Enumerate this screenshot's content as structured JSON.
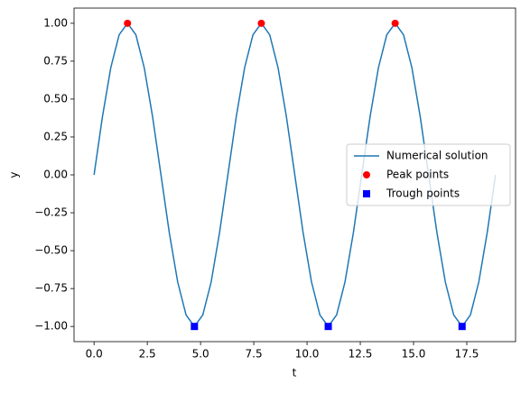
{
  "chart_data": {
    "type": "line",
    "xlabel": "t",
    "ylabel": "y",
    "xlim": [
      -0.94,
      19.79
    ],
    "ylim": [
      -1.1,
      1.1
    ],
    "xticks": [
      {
        "value": 0,
        "label": "0.0"
      },
      {
        "value": 2.5,
        "label": "2.5"
      },
      {
        "value": 5,
        "label": "5.0"
      },
      {
        "value": 7.5,
        "label": "7.5"
      },
      {
        "value": 10,
        "label": "10.0"
      },
      {
        "value": 12.5,
        "label": "12.5"
      },
      {
        "value": 15,
        "label": "15.0"
      },
      {
        "value": 17.5,
        "label": "17.5"
      }
    ],
    "yticks": [
      {
        "value": -1,
        "label": "−1.00"
      },
      {
        "value": -0.75,
        "label": "−0.75"
      },
      {
        "value": -0.5,
        "label": "−0.50"
      },
      {
        "value": -0.25,
        "label": "−0.25"
      },
      {
        "value": 0,
        "label": "0.00"
      },
      {
        "value": 0.25,
        "label": "0.25"
      },
      {
        "value": 0.5,
        "label": "0.50"
      },
      {
        "value": 0.75,
        "label": "0.75"
      },
      {
        "value": 1,
        "label": "1.00"
      }
    ],
    "grid": false,
    "legend": "center right",
    "series": [
      {
        "name": "Numerical solution",
        "color": "#1f77b4",
        "style": "line",
        "x": [
          0,
          0.393,
          0.785,
          1.178,
          1.571,
          1.963,
          2.356,
          2.749,
          3.142,
          3.534,
          3.927,
          4.32,
          4.712,
          5.105,
          5.498,
          5.89,
          6.283,
          6.676,
          7.069,
          7.461,
          7.854,
          8.247,
          8.639,
          9.032,
          9.425,
          9.817,
          10.21,
          10.603,
          10.996,
          11.388,
          11.781,
          12.174,
          12.566,
          12.959,
          13.352,
          13.744,
          14.137,
          14.53,
          14.923,
          15.315,
          15.708,
          16.101,
          16.493,
          16.886,
          17.279,
          17.671,
          18.064,
          18.457,
          18.85
        ],
        "values": [
          0,
          0.383,
          0.707,
          0.924,
          1,
          0.924,
          0.707,
          0.383,
          0,
          -0.383,
          -0.707,
          -0.924,
          -1,
          -0.924,
          -0.707,
          -0.383,
          0,
          0.383,
          0.707,
          0.924,
          1,
          0.924,
          0.707,
          0.383,
          0,
          -0.383,
          -0.707,
          -0.924,
          -1,
          -0.924,
          -0.707,
          -0.383,
          0,
          0.383,
          0.707,
          0.924,
          1,
          0.924,
          0.707,
          0.383,
          0,
          -0.383,
          -0.707,
          -0.924,
          -1,
          -0.924,
          -0.707,
          -0.383,
          0
        ]
      },
      {
        "name": "Peak points",
        "color": "#ff0000",
        "style": "circle",
        "x": [
          1.571,
          7.854,
          14.137
        ],
        "values": [
          1,
          1,
          1
        ]
      },
      {
        "name": "Trough points",
        "color": "#0000ff",
        "style": "square",
        "x": [
          4.712,
          10.996,
          17.279
        ],
        "values": [
          -1,
          -1,
          -1
        ]
      }
    ]
  }
}
